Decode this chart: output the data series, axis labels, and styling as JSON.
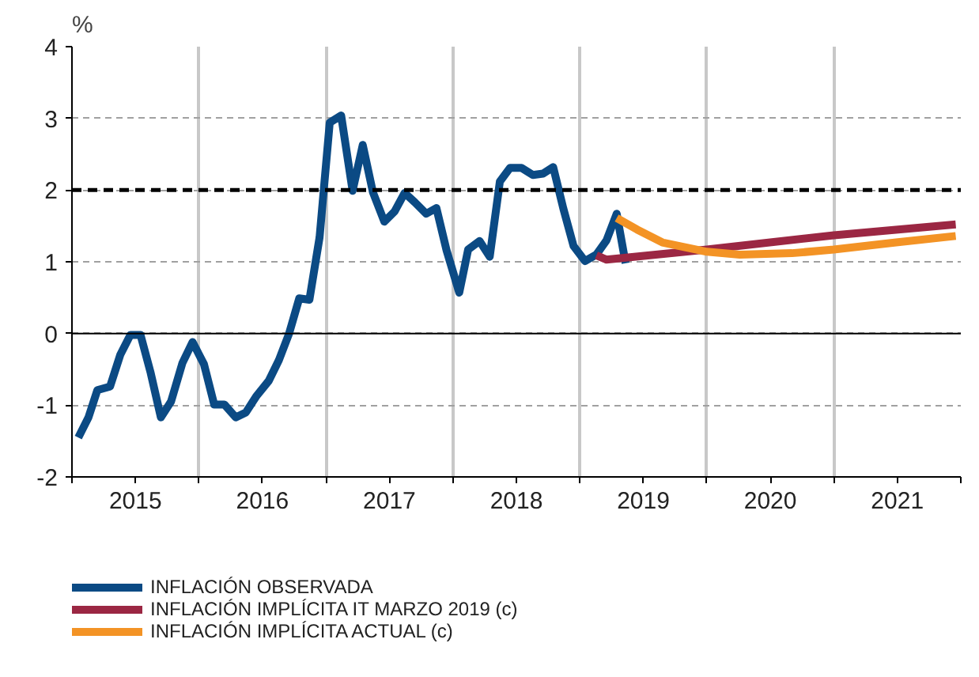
{
  "chart_data": {
    "type": "line",
    "ylabel": "%",
    "xlim": [
      2015,
      2022
    ],
    "xticks": [
      {
        "value": 2015,
        "label": null
      },
      {
        "value": 2015.5,
        "label": "2015"
      },
      {
        "value": 2016,
        "label": null
      },
      {
        "value": 2016.5,
        "label": "2016"
      },
      {
        "value": 2017,
        "label": null
      },
      {
        "value": 2017.5,
        "label": "2017"
      },
      {
        "value": 2018,
        "label": null
      },
      {
        "value": 2018.5,
        "label": "2018"
      },
      {
        "value": 2019,
        "label": null
      },
      {
        "value": 2019.5,
        "label": "2019"
      },
      {
        "value": 2020,
        "label": null
      },
      {
        "value": 2020.5,
        "label": "2020"
      },
      {
        "value": 2021,
        "label": null
      },
      {
        "value": 2021.5,
        "label": "2021"
      },
      {
        "value": 2022,
        "label": null
      }
    ],
    "ylim": [
      -2,
      4
    ],
    "yticks": [
      -2,
      -1,
      0,
      1,
      2,
      3,
      4
    ],
    "grid": true,
    "legend": "bottom",
    "ref_lines": [
      {
        "axis": "y",
        "value": 0,
        "color": "#000000",
        "line_style": "solid"
      },
      {
        "axis": "y",
        "value": 2,
        "color": "#000000",
        "line_style": "dashed"
      }
    ],
    "series": [
      {
        "name": "INFLACIÓN OBSERVADA",
        "color": "#0b4a84",
        "x": [
          2015.05,
          2015.13,
          2015.2,
          2015.3,
          2015.38,
          2015.46,
          2015.54,
          2015.62,
          2015.7,
          2015.78,
          2015.87,
          2015.95,
          2016.04,
          2016.12,
          2016.2,
          2016.29,
          2016.37,
          2016.45,
          2016.55,
          2016.63,
          2016.71,
          2016.79,
          2016.87,
          2016.95,
          2017.03,
          2017.12,
          2017.21,
          2017.29,
          2017.37,
          2017.46,
          2017.54,
          2017.62,
          2017.7,
          2017.79,
          2017.87,
          2017.95,
          2018.05,
          2018.12,
          2018.21,
          2018.29,
          2018.37,
          2018.45,
          2018.54,
          2018.63,
          2018.71,
          2018.79,
          2018.87,
          2018.95,
          2019.04,
          2019.13,
          2019.21,
          2019.29,
          2019.36
        ],
        "values": [
          -1.45,
          -1.17,
          -0.79,
          -0.74,
          -0.3,
          -0.02,
          -0.02,
          -0.55,
          -1.17,
          -0.95,
          -0.41,
          -0.12,
          -0.43,
          -0.99,
          -0.99,
          -1.17,
          -1.1,
          -0.88,
          -0.66,
          -0.37,
          0.0,
          0.49,
          0.47,
          1.34,
          2.94,
          3.04,
          1.99,
          2.63,
          1.97,
          1.56,
          1.7,
          1.96,
          1.83,
          1.67,
          1.75,
          1.16,
          0.57,
          1.17,
          1.29,
          1.07,
          2.12,
          2.31,
          2.31,
          2.21,
          2.23,
          2.32,
          1.74,
          1.22,
          1.01,
          1.1,
          1.3,
          1.67,
          0.98
        ]
      },
      {
        "name": "INFLACIÓN IMPLÍCITA IT MARZO 2019 (c)",
        "color": "#9b2743",
        "x": [
          2019.13,
          2019.21,
          2020.0,
          2021.0,
          2021.96
        ],
        "values": [
          1.09,
          1.03,
          1.17,
          1.37,
          1.52
        ]
      },
      {
        "name": "INFLACIÓN IMPLÍCITA ACTUAL (c)",
        "color": "#f39325",
        "x": [
          2019.29,
          2019.45,
          2019.65,
          2020.0,
          2020.26,
          2020.67,
          2021.0,
          2021.49,
          2021.96
        ],
        "values": [
          1.61,
          1.45,
          1.27,
          1.14,
          1.1,
          1.12,
          1.17,
          1.27,
          1.36
        ]
      }
    ]
  }
}
